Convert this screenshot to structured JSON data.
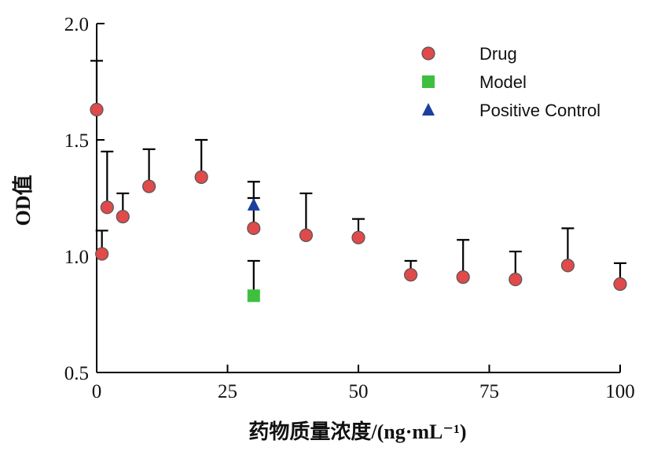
{
  "chart_data": {
    "type": "scatter",
    "xlabel": "药物质量浓度/(ng·mL⁻¹)",
    "ylabel": "OD值",
    "xlim": [
      0,
      100
    ],
    "ylim": [
      0.5,
      2.0
    ],
    "x_ticks": [
      "0",
      "25",
      "50",
      "75",
      "100"
    ],
    "y_ticks": [
      "0.5",
      "1.0",
      "1.5",
      "2.0"
    ],
    "legend_position": "top-right",
    "error_bars": "upper",
    "series": [
      {
        "name": "Drug",
        "marker": "circle",
        "color": "#e04a4a",
        "points": [
          {
            "x": 0,
            "y": 1.63,
            "err": 0.21
          },
          {
            "x": 1,
            "y": 1.01,
            "err": 0.1
          },
          {
            "x": 2,
            "y": 1.21,
            "err": 0.24
          },
          {
            "x": 5,
            "y": 1.17,
            "err": 0.1
          },
          {
            "x": 10,
            "y": 1.3,
            "err": 0.16
          },
          {
            "x": 20,
            "y": 1.34,
            "err": 0.16
          },
          {
            "x": 30,
            "y": 1.12,
            "err": 0.2
          },
          {
            "x": 40,
            "y": 1.09,
            "err": 0.18
          },
          {
            "x": 50,
            "y": 1.08,
            "err": 0.08
          },
          {
            "x": 60,
            "y": 0.92,
            "err": 0.06
          },
          {
            "x": 70,
            "y": 0.91,
            "err": 0.16
          },
          {
            "x": 80,
            "y": 0.9,
            "err": 0.12
          },
          {
            "x": 90,
            "y": 0.96,
            "err": 0.16
          },
          {
            "x": 100,
            "y": 0.88,
            "err": 0.09
          }
        ]
      },
      {
        "name": "Model",
        "marker": "square",
        "color": "#3fbf3f",
        "points": [
          {
            "x": 30,
            "y": 0.83,
            "err": 0.15
          }
        ]
      },
      {
        "name": "Positive Control",
        "marker": "triangle",
        "color": "#1c3f9e",
        "points": [
          {
            "x": 30,
            "y": 1.22,
            "err": 0.03
          }
        ]
      }
    ]
  }
}
